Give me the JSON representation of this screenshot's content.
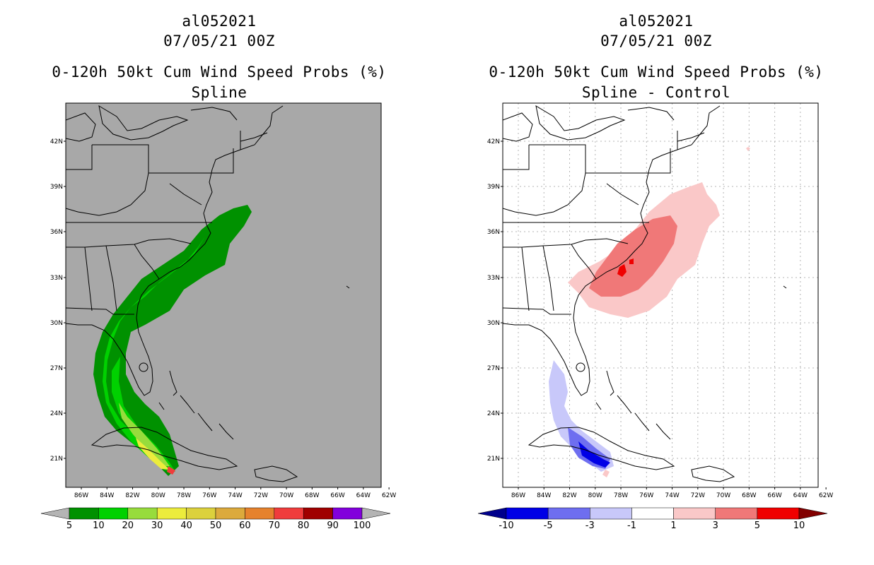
{
  "left_panel": {
    "storm_id": "al052021",
    "datetime": "07/05/21 00Z",
    "product": "0-120h 50kt Cum Wind Speed Probs (%)",
    "subtitle": "Spline",
    "lat_labels": [
      "42N",
      "39N",
      "36N",
      "33N",
      "30N",
      "27N",
      "24N",
      "21N"
    ],
    "lon_labels": [
      "86W",
      "84W",
      "82W",
      "80W",
      "78W",
      "76W",
      "74W",
      "72W",
      "70W",
      "68W",
      "66W",
      "64W",
      "62W"
    ],
    "colorbar": {
      "labels": [
        "5",
        "10",
        "20",
        "30",
        "40",
        "50",
        "60",
        "70",
        "80",
        "90",
        "100"
      ],
      "colors": [
        "#009100",
        "#00d100",
        "#97dc3c",
        "#ecec3c",
        "#dcd13c",
        "#dcaa3c",
        "#e6822d",
        "#f03c3c",
        "#a00000",
        "#8200dc"
      ],
      "under_color": "#b4b4b4",
      "over_color": "#b4b4b4"
    },
    "background_color": "#a8a8a8"
  },
  "right_panel": {
    "storm_id": "al052021",
    "datetime": "07/05/21 00Z",
    "product": "0-120h 50kt Cum Wind Speed Probs (%)",
    "subtitle": "Spline - Control",
    "lat_labels": [
      "42N",
      "39N",
      "36N",
      "33N",
      "30N",
      "27N",
      "24N",
      "21N"
    ],
    "lon_labels": [
      "86W",
      "84W",
      "82W",
      "80W",
      "78W",
      "76W",
      "74W",
      "72W",
      "70W",
      "68W",
      "66W",
      "64W",
      "62W"
    ],
    "colorbar": {
      "labels": [
        "-10",
        "-5",
        "-3",
        "-1",
        "1",
        "3",
        "5",
        "10"
      ],
      "colors": [
        "#0000e6",
        "#6e6ef0",
        "#c8c8fa",
        "#ffffff",
        "#fac8c8",
        "#f07878",
        "#f00000"
      ],
      "under_color": "#00008c",
      "over_color": "#820000"
    },
    "background_color": "#ffffff"
  }
}
